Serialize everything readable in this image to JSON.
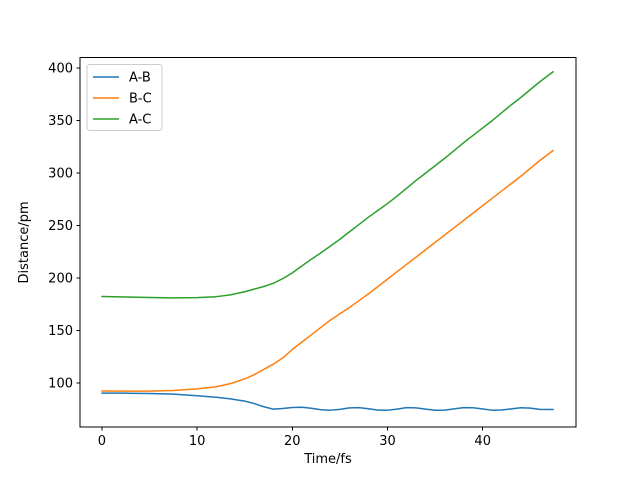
{
  "chart_data": {
    "type": "line",
    "title": "",
    "xlabel": "Time/fs",
    "ylabel": "Distance/pm",
    "xlim": [
      -2.3,
      49.8
    ],
    "ylim": [
      58,
      410
    ],
    "xticks": [
      0,
      10,
      20,
      30,
      40
    ],
    "yticks": [
      100,
      150,
      200,
      250,
      300,
      350,
      400
    ],
    "grid": false,
    "legend": {
      "position": "upper left",
      "border_color": "#cccccc",
      "background": "#ffffff"
    },
    "x": [
      0,
      2.5,
      5,
      7.5,
      10,
      12,
      13.5,
      15,
      16,
      17,
      18,
      19,
      20,
      21,
      22,
      23,
      24,
      25,
      26,
      27,
      28,
      29,
      30,
      31,
      32,
      33,
      34,
      35,
      36,
      37,
      38,
      39,
      40,
      41,
      42,
      43,
      44,
      45,
      46,
      47.4
    ],
    "series": [
      {
        "name": "A-B",
        "color": "#1f77b4",
        "values": [
          90.5,
          90.4,
          90.1,
          89.5,
          88.0,
          86.5,
          85.0,
          82.8,
          80.5,
          77.5,
          75.2,
          75.8,
          76.8,
          77.0,
          76.0,
          74.6,
          74.2,
          75.0,
          76.4,
          76.6,
          75.6,
          74.3,
          74.2,
          75.2,
          76.6,
          76.4,
          75.2,
          74.1,
          74.3,
          75.4,
          76.6,
          76.5,
          75.3,
          74.2,
          74.4,
          75.5,
          76.5,
          76.2,
          75.0,
          74.9
        ]
      },
      {
        "name": "B-C",
        "color": "#ff7f0e",
        "values": [
          92.5,
          92.4,
          92.4,
          93.0,
          94.5,
          96.5,
          99.5,
          104.0,
          108.0,
          113.0,
          118.0,
          124.0,
          132.0,
          139.0,
          146.0,
          153.0,
          160.0,
          166.0,
          172.0,
          178.5,
          185.0,
          192.0,
          199.0,
          206.0,
          213.0,
          220.0,
          227.0,
          234.0,
          241.0,
          248.0,
          255.0,
          262.0,
          269.0,
          276.0,
          283.0,
          290.0,
          297.0,
          304.5,
          312.0,
          321.5
        ]
      },
      {
        "name": "A-C",
        "color": "#2ca02c",
        "values": [
          182.5,
          182.0,
          181.5,
          181.2,
          181.4,
          182.3,
          184.0,
          187.0,
          189.5,
          192.0,
          195.0,
          199.5,
          205.0,
          211.5,
          218.0,
          224.0,
          230.5,
          237.0,
          244.0,
          251.0,
          258.0,
          264.5,
          271.0,
          278.0,
          285.5,
          293.0,
          300.0,
          307.0,
          314.0,
          321.5,
          329.0,
          336.0,
          343.0,
          350.0,
          357.5,
          365.0,
          372.0,
          379.5,
          387.0,
          396.5
        ]
      }
    ]
  }
}
